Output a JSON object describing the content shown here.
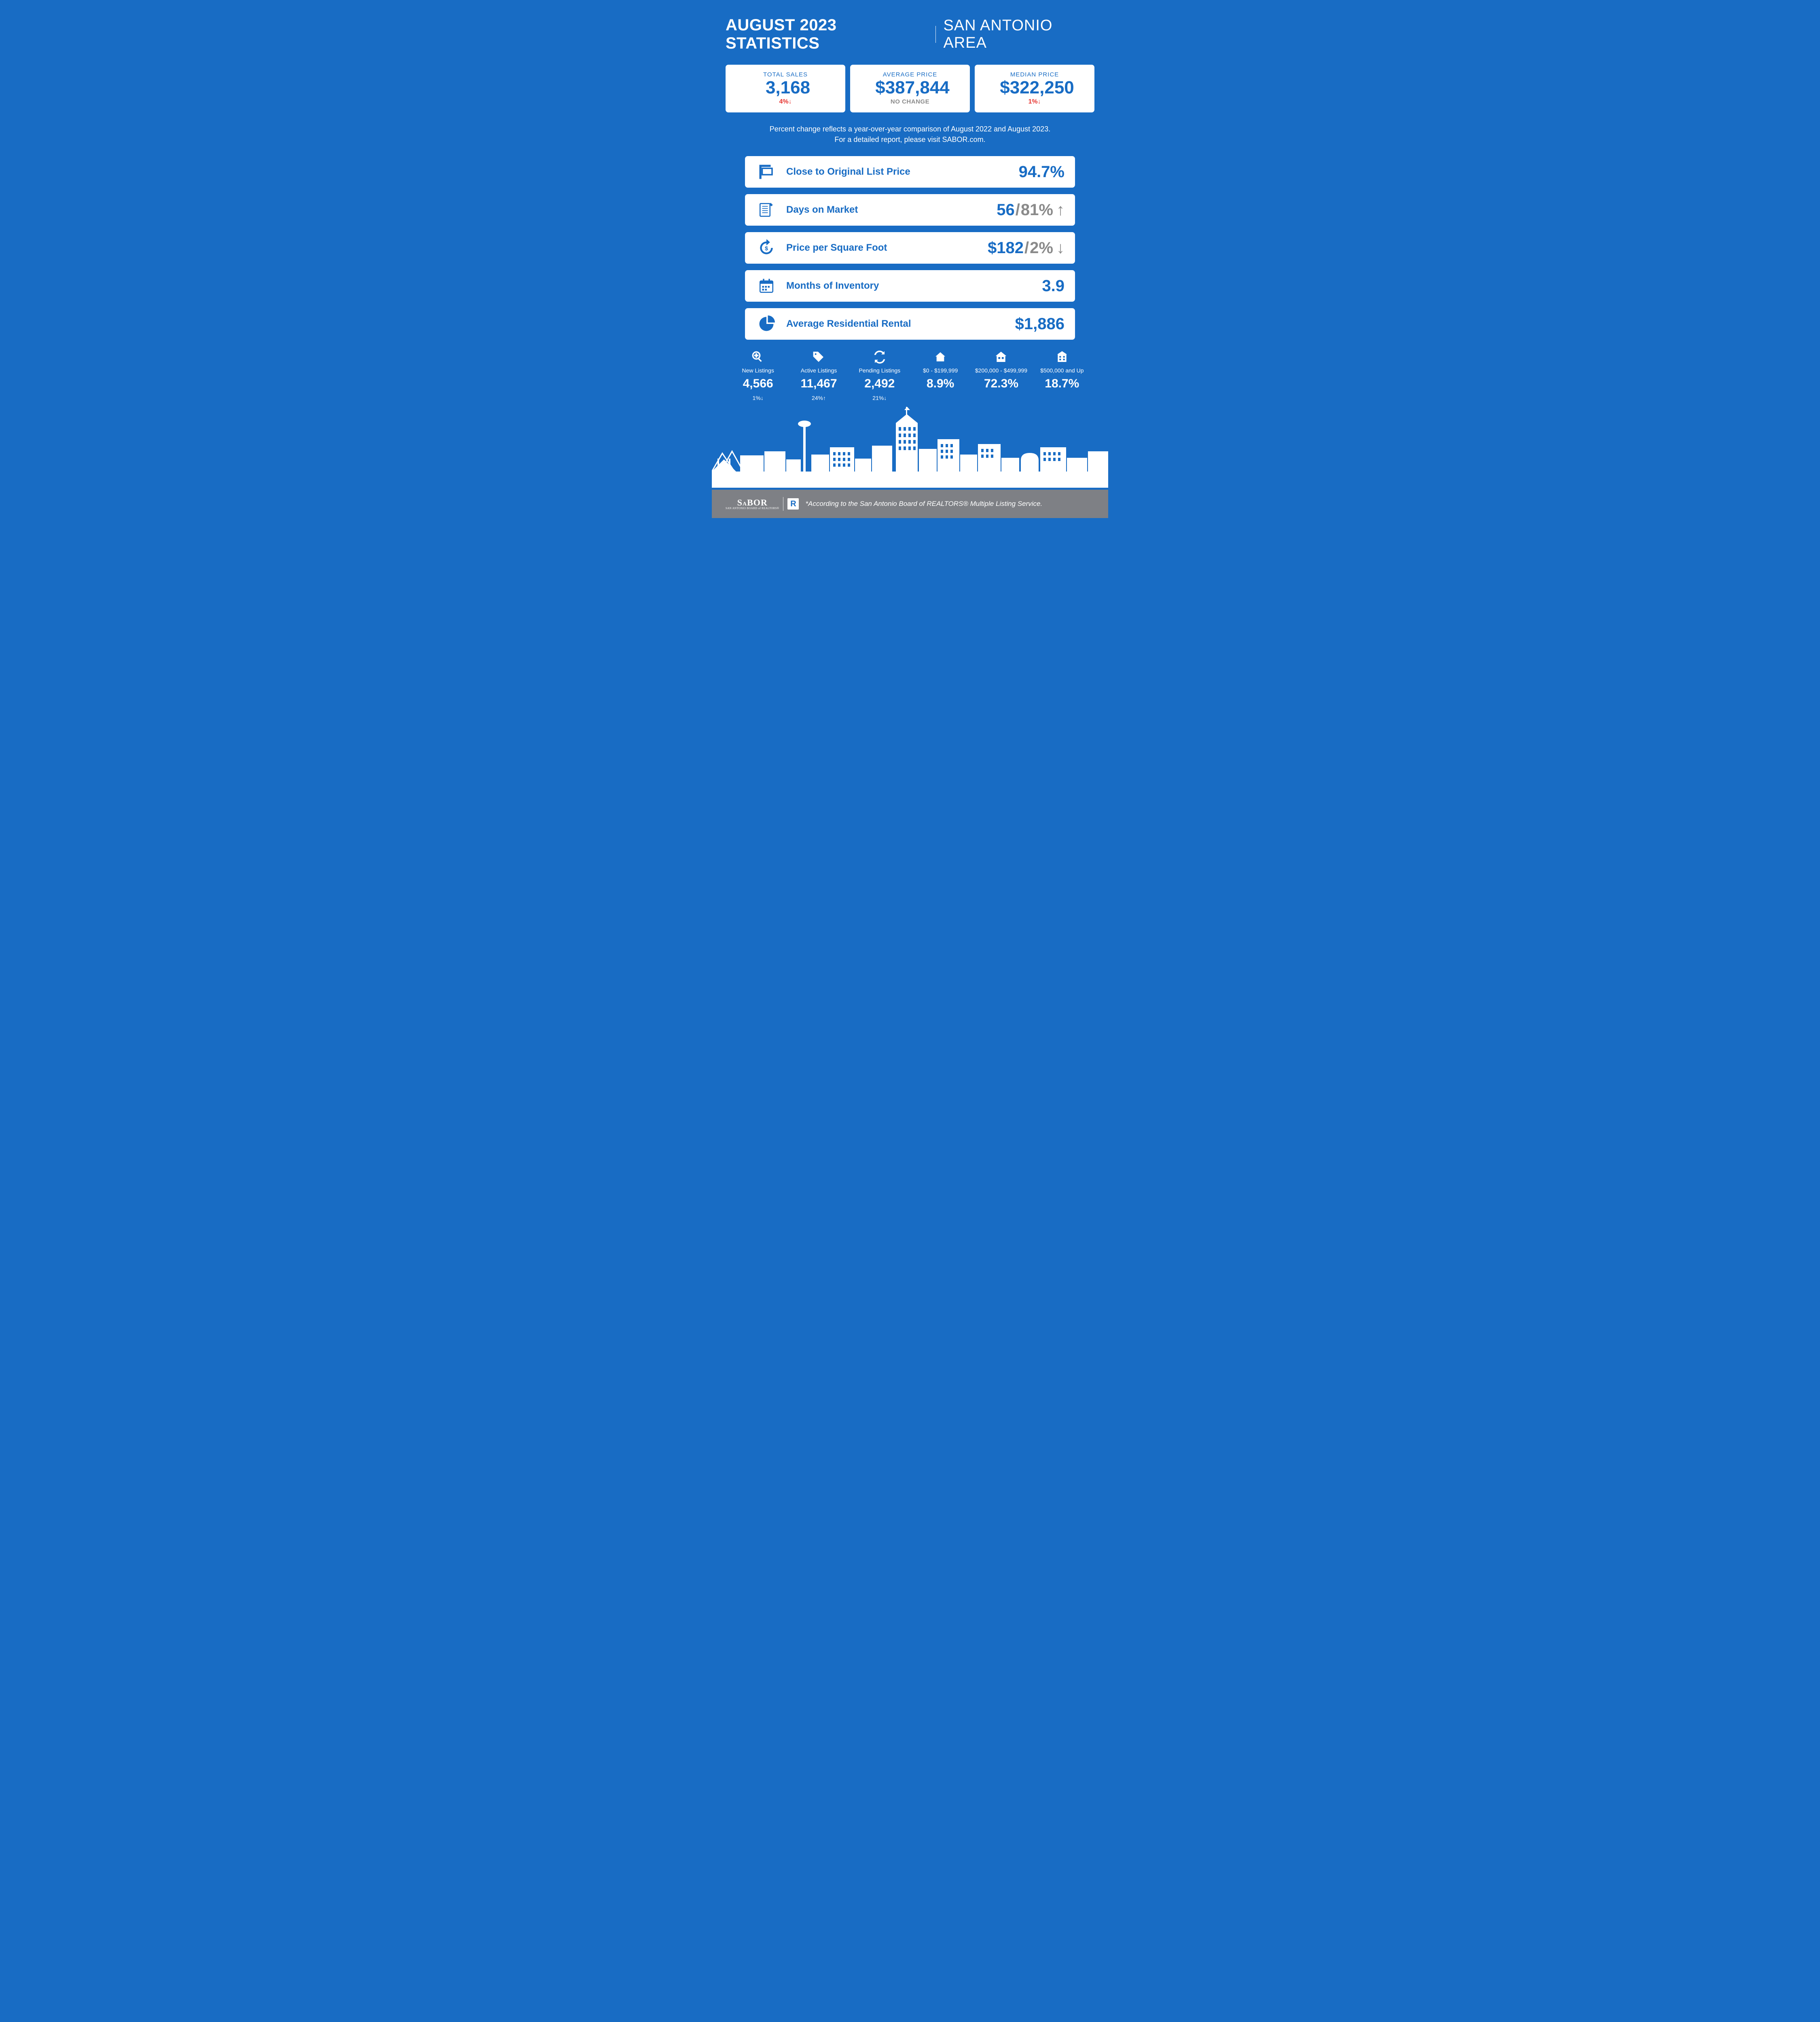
{
  "colors": {
    "brand": "#186cc4",
    "red": "#e63632",
    "gray": "#8a8a8a",
    "footer": "#7e8085"
  },
  "header": {
    "title": "AUGUST 2023 STATISTICS",
    "region": "SAN ANTONIO AREA"
  },
  "top_cards": [
    {
      "id": "total-sales",
      "label": "TOTAL SALES",
      "value": "3,168",
      "change": "4%↓",
      "change_color": "red",
      "icon": "moneybag"
    },
    {
      "id": "avg-price",
      "label": "AVERAGE PRICE",
      "value": "$387,844",
      "change": "NO CHANGE",
      "change_color": "gray",
      "icon": "coins"
    },
    {
      "id": "median-price",
      "label": "MEDIAN PRICE",
      "value": "$322,250",
      "change": "1%↓",
      "change_color": "red",
      "icon": "growth"
    }
  ],
  "note_line1": "Percent change reflects a year-over-year comparison of August 2022 and August 2023.",
  "note_line2": "For a detailed report, please visit SABOR.com.",
  "metrics": [
    {
      "id": "close-to-list",
      "icon": "sign",
      "label": "Close to Original List Price",
      "primary": "94.7%",
      "secondary": null,
      "arrow": null
    },
    {
      "id": "days-on-market",
      "icon": "notepad",
      "label": "Days on Market",
      "primary": "56",
      "secondary": "81%",
      "arrow": "↑"
    },
    {
      "id": "price-sqft",
      "icon": "refresh-dollar",
      "label": "Price per Square Foot",
      "primary": "$182",
      "secondary": "2%",
      "arrow": "↓"
    },
    {
      "id": "months-inventory",
      "icon": "calendar",
      "label": "Months of Inventory",
      "primary": "3.9",
      "secondary": null,
      "arrow": null
    },
    {
      "id": "avg-rental",
      "icon": "pie",
      "label": "Average Residential Rental",
      "primary": "$1,886",
      "secondary": null,
      "arrow": null
    }
  ],
  "small_stats": [
    {
      "id": "new-listings",
      "icon": "zoom",
      "label": "New Listings",
      "value": "4,566",
      "change": "1%↓"
    },
    {
      "id": "active-listings",
      "icon": "tag",
      "label": "Active Listings",
      "value": "11,467",
      "change": "24%↑"
    },
    {
      "id": "pending-listings",
      "icon": "cycle",
      "label": "Pending Listings",
      "value": "2,492",
      "change": "21%↓"
    },
    {
      "id": "tier-low",
      "icon": "house-small",
      "label": "$0 - $199,999",
      "value": "8.9%",
      "change": ""
    },
    {
      "id": "tier-mid",
      "icon": "house-mid",
      "label": "$200,000 - $499,999",
      "value": "72.3%",
      "change": ""
    },
    {
      "id": "tier-high",
      "icon": "house-big",
      "label": "$500,000 and Up",
      "value": "18.7%",
      "change": ""
    }
  ],
  "footer": {
    "text": "*According to the San Antonio Board of REALTORS® Multiple Listing Service.",
    "logo_top": "SABOR",
    "logo_bottom": "SAN ANTONIO BOARD of REALTORS®"
  }
}
